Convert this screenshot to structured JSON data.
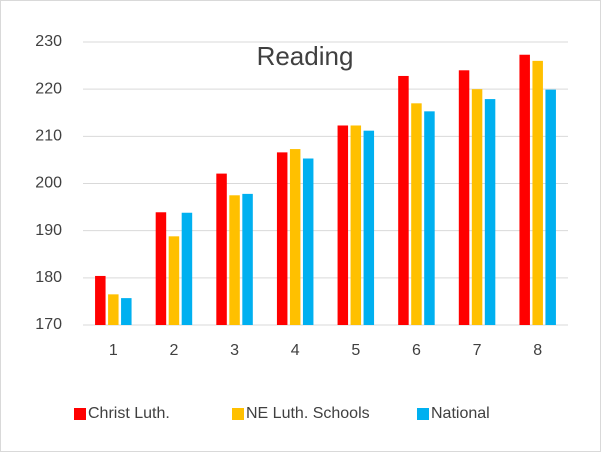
{
  "chart_data": {
    "type": "bar",
    "title": "Reading",
    "categories": [
      "1",
      "2",
      "3",
      "4",
      "5",
      "6",
      "7",
      "8"
    ],
    "series": [
      {
        "name": "Christ Luth.",
        "color": "#ff0000",
        "values": [
          180.4,
          193.9,
          202.1,
          206.6,
          212.3,
          222.8,
          224,
          227.3
        ]
      },
      {
        "name": "NE Luth. Schools",
        "color": "#ffc000",
        "values": [
          176.5,
          188.8,
          197.5,
          207.3,
          212.3,
          217,
          220,
          226
        ]
      },
      {
        "name": "National",
        "color": "#00b0f0",
        "values": [
          175.7,
          193.8,
          197.8,
          205.3,
          211.2,
          215.3,
          217.9,
          219.9
        ]
      }
    ],
    "ylim": [
      170,
      230
    ],
    "yticks": [
      170,
      180,
      190,
      200,
      210,
      220,
      230
    ],
    "grid": true,
    "legend": "bottom"
  }
}
